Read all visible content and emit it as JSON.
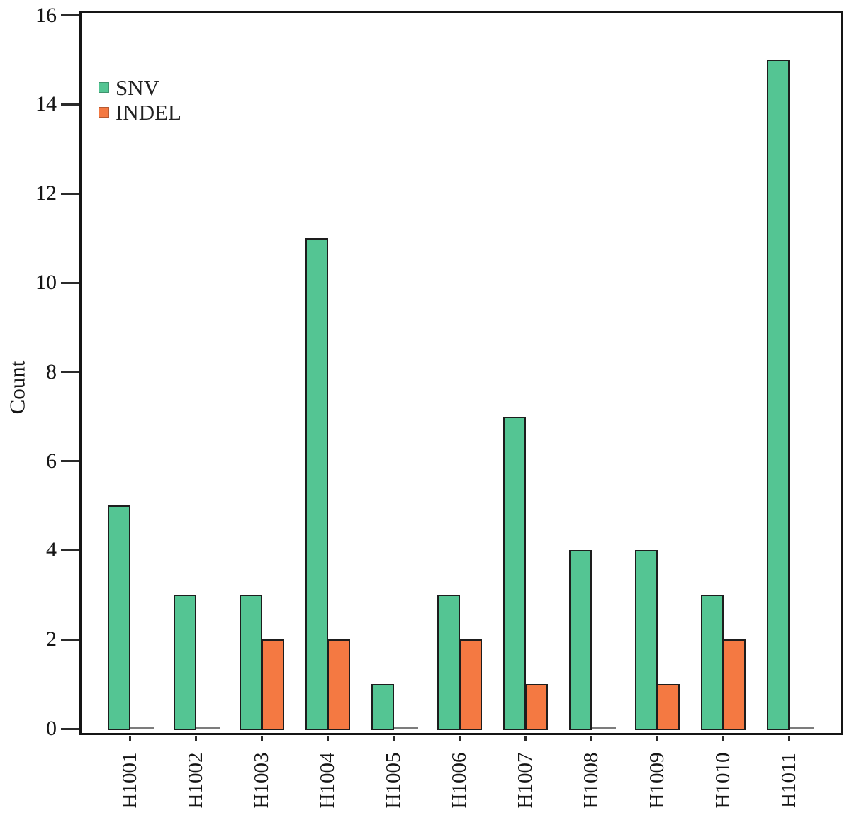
{
  "chart_data": {
    "type": "bar",
    "title": "",
    "ylabel": "Count",
    "xlabel": "",
    "categories": [
      "H1001",
      "H1002",
      "H1003",
      "H1004",
      "H1005",
      "H1006",
      "H1007",
      "H1008",
      "H1009",
      "H1010",
      "H1011"
    ],
    "series": [
      {
        "name": "SNV",
        "color": "#54C593",
        "values": [
          5,
          3,
          3,
          11,
          1,
          3,
          7,
          4,
          4,
          3,
          15
        ]
      },
      {
        "name": "INDEL",
        "color": "#F47942",
        "values": [
          0,
          0,
          2,
          2,
          0,
          2,
          1,
          0,
          1,
          2,
          0
        ]
      }
    ],
    "ylim": [
      0,
      16
    ],
    "yticks": [
      0,
      2,
      4,
      6,
      8,
      10,
      12,
      14,
      16
    ],
    "grid": false,
    "legend_position": "top-left",
    "bar_border_color": "#1d1d1d",
    "frame_color": "#151515",
    "zero_value_marker_color": "#7c7c7c"
  }
}
